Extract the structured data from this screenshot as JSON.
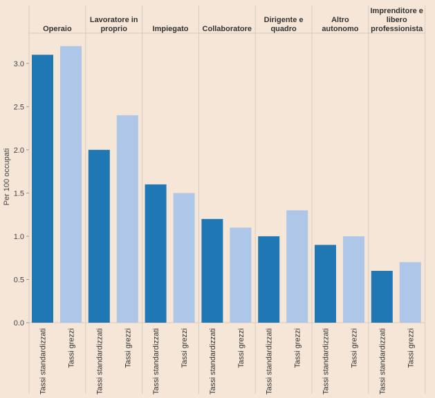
{
  "chart_data": {
    "type": "bar",
    "ylabel": "Per 100 occupati",
    "ylim": [
      0,
      3.35
    ],
    "y_ticks": [
      0.0,
      0.5,
      1.0,
      1.5,
      2.0,
      2.5,
      3.0
    ],
    "y_tick_labels": [
      "0.0",
      "0.5",
      "1.0",
      "1.5",
      "2.0",
      "2.5",
      "3.0"
    ],
    "grid": false,
    "colors": {
      "Tassi standardizzati": "#1f77b4",
      "Tassi grezzi": "#aec7e8"
    },
    "bar_labels": [
      "Tassi standardizzati",
      "Tassi grezzi"
    ],
    "groups": [
      {
        "label": [
          "Operaio"
        ],
        "values": [
          3.1,
          3.2
        ]
      },
      {
        "label": [
          "Lavoratore in",
          "proprio"
        ],
        "values": [
          2.0,
          2.4
        ]
      },
      {
        "label": [
          "Impiegato"
        ],
        "values": [
          1.6,
          1.5
        ]
      },
      {
        "label": [
          "Collaboratore"
        ],
        "values": [
          1.2,
          1.1
        ]
      },
      {
        "label": [
          "Dirigente e",
          "quadro"
        ],
        "values": [
          1.0,
          1.3
        ]
      },
      {
        "label": [
          "Altro",
          "autonomo"
        ],
        "values": [
          0.9,
          1.0
        ]
      },
      {
        "label": [
          "Imprenditore e",
          "libero",
          "professionista"
        ],
        "values": [
          0.6,
          0.7
        ]
      }
    ]
  }
}
